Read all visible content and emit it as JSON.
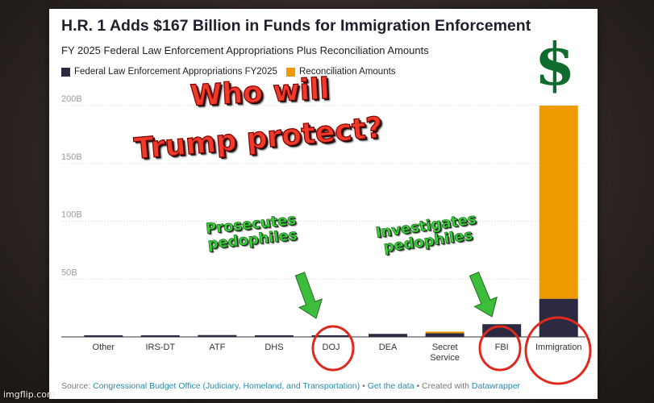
{
  "chart_data": {
    "type": "bar",
    "stacked": true,
    "title": "H.R. 1 Adds $167 Billion in Funds for Immigration Enforcement",
    "subtitle": "FY 2025 Federal Law Enforcement Appropriations Plus Reconciliation Amounts",
    "categories": [
      "Other",
      "IRS-DT",
      "ATF",
      "DHS",
      "DOJ",
      "DEA",
      "Secret Service",
      "FBI",
      "Immigration"
    ],
    "series": [
      {
        "name": "Federal Law Enforcement Appropriations FY2025",
        "color": "#2b2a40",
        "values": [
          0.6,
          0.5,
          1.6,
          0.6,
          0.6,
          2.6,
          3.2,
          11.0,
          33.0
        ]
      },
      {
        "name": "Reconciliation Amounts",
        "color": "#ee9a00",
        "values": [
          0,
          0,
          0,
          0,
          0,
          0,
          1.2,
          0,
          167.0
        ]
      }
    ],
    "ylim": [
      0,
      200
    ],
    "yticks": [
      "50B",
      "100B",
      "150B",
      "200B"
    ],
    "ytick_values": [
      50,
      100,
      150,
      200
    ],
    "grid": true,
    "legend": "top-left",
    "source_prefix": "Source: ",
    "source_link": "Congressional Budget Office (Judiciary, Homeland, and Transportation)",
    "source_sep1": " • ",
    "get_data": "Get the data",
    "source_sep2": " • Created with ",
    "datawrapper": "Datawrapper"
  },
  "overlay": {
    "headline_line1": "Who will",
    "headline_line2": "Trump protect?",
    "label_doj_line1": "Prosecutes",
    "label_doj_line2": "pedophiles",
    "label_fbi_line1": "Investigates",
    "label_fbi_line2": "pedophiles",
    "dollar": "$",
    "annotation_color": "#e0281e",
    "arrow_color": "#3cbe3c"
  },
  "watermark": "imgflip.com"
}
